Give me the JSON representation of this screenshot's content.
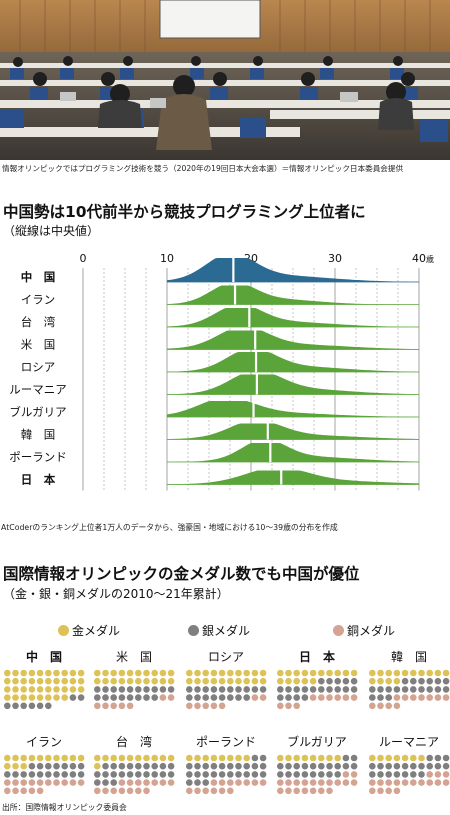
{
  "photo": {
    "caption": "情報オリンピックではプログラミング技術を競う（2020年の19回日本大会本選）＝情報オリンピック日本委員会提供"
  },
  "colors": {
    "china": "#2b6a92",
    "others": "#5aa43a",
    "gold": "#dcc257",
    "silver": "#7f7f7f",
    "bronze": "#d4a391"
  },
  "chart1": {
    "title": "中国勢は10代前半から競技プログラミング上位者に",
    "subtitle": "（縦線は中央値）",
    "note": "AtCoderのランキング上位者1万人のデータから、強豪国・地域における10〜39歳の分布を作成"
  },
  "chart2": {
    "title": "国際情報オリンピックの金メダル数でも中国が優位",
    "subtitle": "（金・銀・銅メダルの2010〜21年累計）",
    "legend": [
      "金メダル",
      "銀メダル",
      "銅メダル"
    ],
    "source": "出所：国際情報オリンピック委員会"
  },
  "chart_data": [
    {
      "type": "area",
      "title": "中国勢は10代前半から競技プログラミング上位者に",
      "subtitle": "（縦線は中央値）",
      "x_ticks": [
        0,
        10,
        20,
        30,
        40
      ],
      "x_unit": "歳",
      "xlim": [
        0,
        40
      ],
      "dashed_gridlines": [
        2.5,
        5,
        7.5,
        12.5,
        15,
        17.5,
        22.5,
        25,
        27.5,
        32.5,
        35,
        37.5
      ],
      "series": [
        {
          "name": "中　国",
          "bold": true,
          "median": 17.9,
          "peak": 17.5,
          "height": 24,
          "spread": 2.8,
          "tail": 6.5
        },
        {
          "name": "イラン",
          "bold": false,
          "median": 18.1,
          "peak": 17.8,
          "height": 19,
          "spread": 2.6,
          "tail": 5.0
        },
        {
          "name": "台　湾",
          "bold": false,
          "median": 19.8,
          "peak": 18.5,
          "height": 19,
          "spread": 2.7,
          "tail": 6.0
        },
        {
          "name": "米　国",
          "bold": false,
          "median": 20.5,
          "peak": 19.0,
          "height": 19,
          "spread": 2.9,
          "tail": 7.0
        },
        {
          "name": "ロシア",
          "bold": false,
          "median": 20.6,
          "peak": 20.0,
          "height": 20,
          "spread": 2.8,
          "tail": 6.0
        },
        {
          "name": "ルーマニア",
          "bold": false,
          "median": 20.7,
          "peak": 20.5,
          "height": 20,
          "spread": 3.0,
          "tail": 6.0
        },
        {
          "name": "ブルガリア",
          "bold": false,
          "median": 20.3,
          "peak": 17.0,
          "height": 16,
          "spread": 3.2,
          "tail": 7.0
        },
        {
          "name": "韓　国",
          "bold": false,
          "median": 22.0,
          "peak": 20.5,
          "height": 16,
          "spread": 3.0,
          "tail": 7.0
        },
        {
          "name": "ポーランド",
          "bold": false,
          "median": 22.3,
          "peak": 21.5,
          "height": 19,
          "spread": 2.6,
          "tail": 6.0
        },
        {
          "name": "日　本",
          "bold": true,
          "median": 23.6,
          "peak": 23.0,
          "height": 14,
          "spread": 3.6,
          "tail": 7.5
        }
      ]
    },
    {
      "type": "table",
      "title": "国際情報オリンピックの金メダル数でも中国が優位",
      "subtitle": "（金・銀・銅メダルの2010〜21年累計）",
      "columns": [
        "金メダル",
        "銀メダル",
        "銅メダル"
      ],
      "rows": [
        {
          "name": "中　国",
          "bold": true,
          "gold": 38,
          "silver": 8,
          "bronze": 0
        },
        {
          "name": "米　国",
          "bold": false,
          "gold": 20,
          "silver": 18,
          "bronze": 7
        },
        {
          "name": "ロシア",
          "bold": false,
          "gold": 20,
          "silver": 18,
          "bronze": 7
        },
        {
          "name": "日　本",
          "bold": true,
          "gold": 15,
          "silver": 19,
          "bronze": 9
        },
        {
          "name": "韓　国",
          "bold": false,
          "gold": 14,
          "silver": 19,
          "bronze": 11
        },
        {
          "name": "イラン",
          "bold": false,
          "gold": 13,
          "silver": 17,
          "bronze": 15
        },
        {
          "name": "台　湾",
          "bold": false,
          "gold": 11,
          "silver": 22,
          "bronze": 14
        },
        {
          "name": "ポーランド",
          "bold": false,
          "gold": 8,
          "silver": 25,
          "bronze": 13
        },
        {
          "name": "ブルガリア",
          "bold": false,
          "gold": 8,
          "silver": 20,
          "bronze": 19
        },
        {
          "name": "ルーマニア",
          "bold": false,
          "gold": 7,
          "silver": 20,
          "bronze": 17
        }
      ]
    }
  ]
}
